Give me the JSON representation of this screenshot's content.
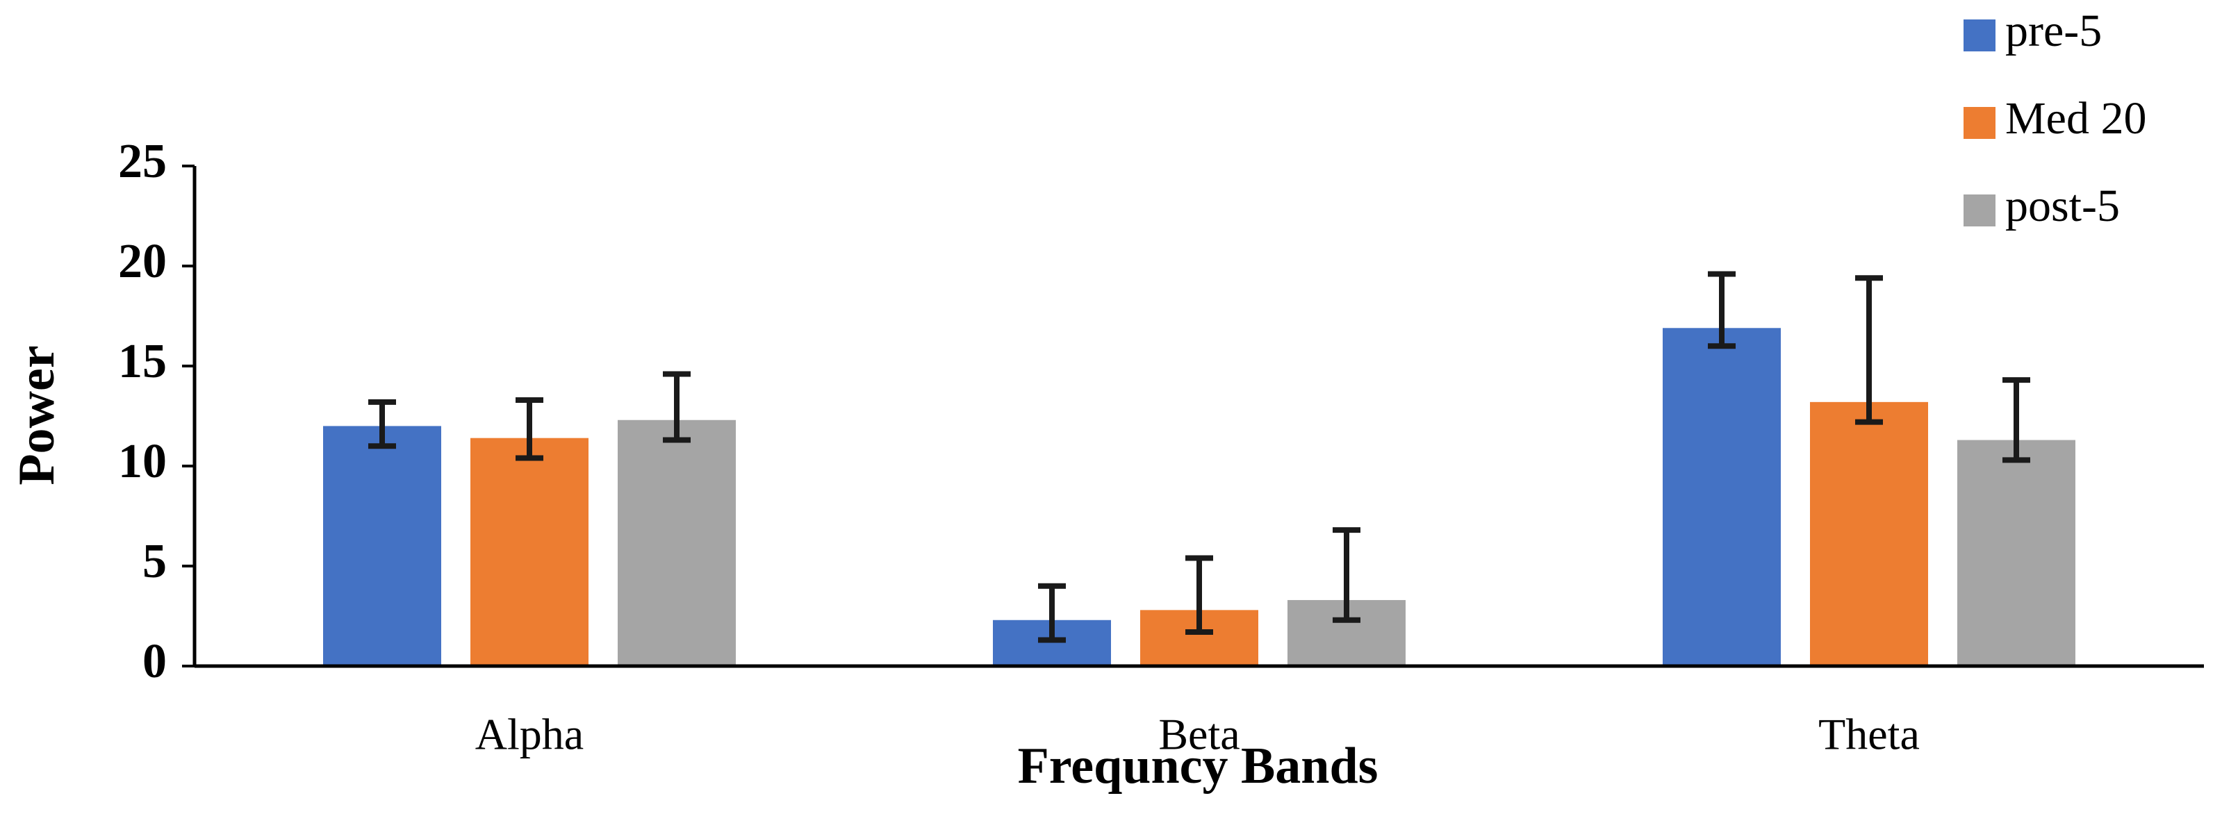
{
  "chart_data": {
    "type": "bar",
    "x_label": "Frequncy Bands",
    "y_label": "Power",
    "categories": [
      "Alpha",
      "Beta",
      "Theta"
    ],
    "series": [
      {
        "name": "pre-5",
        "color": "#4472c4",
        "values": [
          12.0,
          2.3,
          16.9
        ],
        "error_minus": [
          1.0,
          1.0,
          0.9
        ],
        "error_plus": [
          1.2,
          1.7,
          2.7
        ]
      },
      {
        "name": "Med 20",
        "color": "#ed7d31",
        "values": [
          11.4,
          2.8,
          13.2
        ],
        "error_minus": [
          1.0,
          1.1,
          1.0
        ],
        "error_plus": [
          1.9,
          2.6,
          6.2
        ]
      },
      {
        "name": "post-5",
        "color": "#a5a5a5",
        "values": [
          12.3,
          3.3,
          11.3
        ],
        "error_minus": [
          1.0,
          1.0,
          1.0
        ],
        "error_plus": [
          2.3,
          3.5,
          3.0
        ]
      }
    ],
    "ylim": [
      0,
      25
    ],
    "yticks": [
      0,
      5,
      10,
      15,
      20,
      25
    ],
    "grid": false,
    "legend": "top-right"
  }
}
